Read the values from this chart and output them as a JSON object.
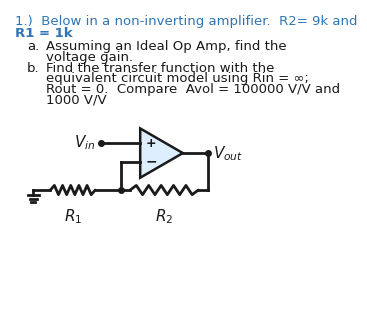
{
  "bg_color": "#ffffff",
  "text_color": "#1a1a1a",
  "blue_color": "#2e75b6",
  "circuit_color": "#1a1a1a",
  "op_amp_fill": "#ddeeff",
  "title_line1": "1.)  Below in a non-inverting amplifier.  R2= 9k and",
  "title_line2": "R1 = 1k",
  "line_a1": "Assuming an Ideal Op Amp, find the",
  "line_a2": "voltage gain.",
  "line_b1": "Find the transfer function with the",
  "line_b2": "equivalent circuit model using Rin = ∞;",
  "line_b3": "Rout = 0.  Compare  Avol = 100000 V/V and",
  "line_b4": "1000 V/V",
  "font_size": 9.5
}
